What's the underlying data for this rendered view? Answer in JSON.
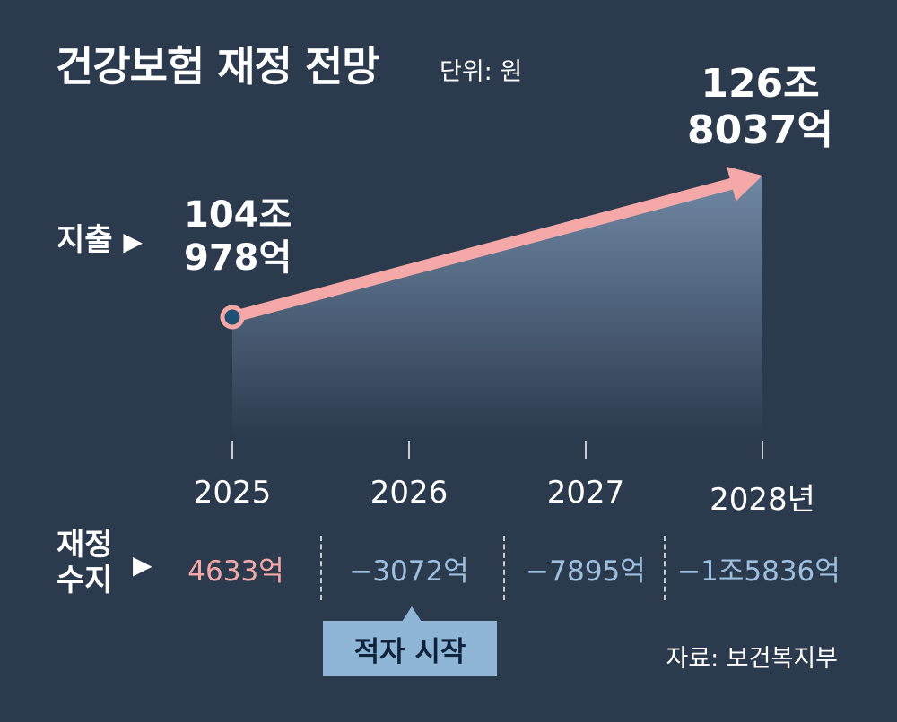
{
  "title": "건강보험 재정 전망",
  "unit": "단위: 원",
  "spending_label": "지출",
  "balance_label_line1": "재정",
  "balance_label_line2": "수지",
  "arrow_glyph": "▶",
  "start_value_line1": "104조",
  "start_value_line2": "978억",
  "end_value_line1": "126조",
  "end_value_line2": "8037억",
  "deficit_start_label": "적자 시작",
  "source": "자료: 보건복지부",
  "colors": {
    "background": "#2c3a4e",
    "line": "#f4a9a8",
    "area_top": "#7088a5",
    "positive_balance": "#f4a9a8",
    "negative_balance": "#9dbfe0",
    "callout_bg": "#8fb6d6"
  },
  "chart_data": {
    "type": "line",
    "x": [
      "2025",
      "2026",
      "2027",
      "2028년"
    ],
    "series": [
      {
        "name": "지출",
        "x": [
          "2025",
          "2028년"
        ],
        "values_krw_100m": [
          1040978,
          1268037
        ],
        "labels": [
          "104조 978억",
          "126조 8037억"
        ]
      }
    ],
    "balance": {
      "name": "재정 수지",
      "values_krw_100m": [
        4633,
        -3072,
        -7895,
        -15836
      ],
      "labels": [
        "4633억",
        "−3072억",
        "−7895억",
        "−1조5836억"
      ]
    }
  }
}
